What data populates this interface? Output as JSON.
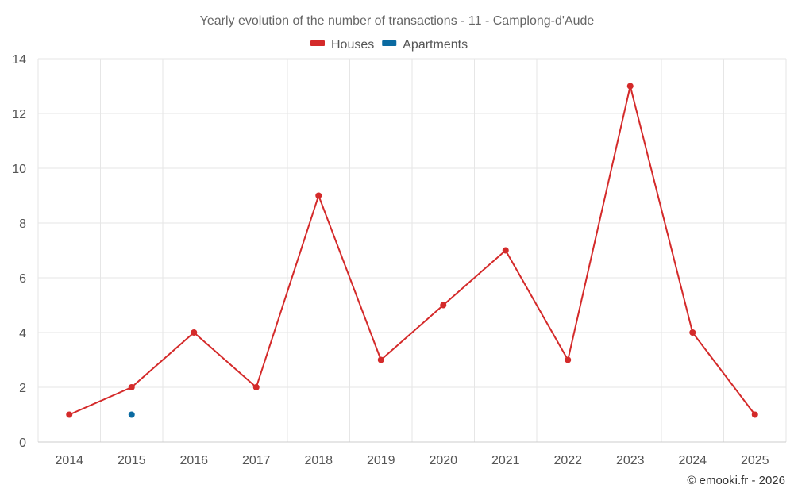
{
  "chart_data": {
    "type": "line",
    "title": "Yearly evolution of the number of transactions - 11 - Camplong-d'Aude",
    "xlabel": "",
    "ylabel": "",
    "categories": [
      "2014",
      "2015",
      "2016",
      "2017",
      "2018",
      "2019",
      "2020",
      "2021",
      "2022",
      "2023",
      "2024",
      "2025"
    ],
    "ylim": [
      0,
      14
    ],
    "yticks": [
      0,
      2,
      4,
      6,
      8,
      10,
      12,
      14
    ],
    "grid": true,
    "legend_position": "top-center",
    "series": [
      {
        "name": "Houses",
        "color": "#d42a2a",
        "values": [
          1,
          2,
          4,
          2,
          9,
          3,
          5,
          7,
          3,
          13,
          4,
          1
        ]
      },
      {
        "name": "Apartments",
        "color": "#0a6aa1",
        "values": [
          null,
          1,
          null,
          null,
          null,
          null,
          null,
          null,
          null,
          null,
          null,
          null
        ]
      }
    ],
    "credit": "© emooki.fr - 2026"
  }
}
